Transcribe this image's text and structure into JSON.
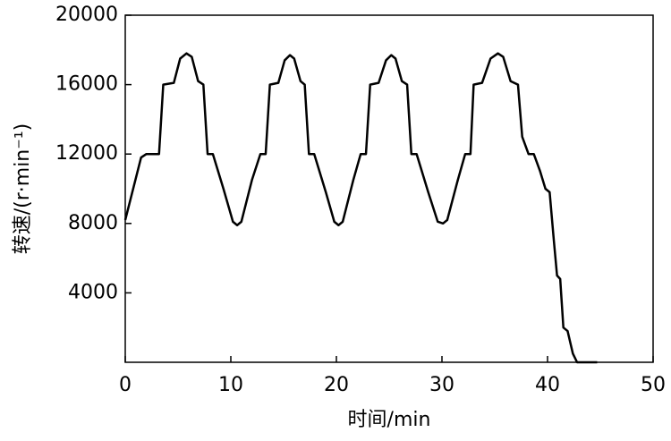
{
  "chart_data": {
    "type": "line",
    "xlabel": "时间/min",
    "ylabel": "转速/(r·min⁻¹)",
    "xlim": [
      0,
      50
    ],
    "xticks": [
      0,
      10,
      20,
      30,
      40,
      50
    ],
    "ylim": [
      0,
      20000
    ],
    "yticks": [
      4000,
      8000,
      12000,
      16000,
      20000
    ],
    "grid": false,
    "series": [
      {
        "color": "#000000",
        "x": [
          0,
          1.5,
          2.0,
          3.2,
          3.6,
          4.6,
          5.2,
          5.8,
          6.3,
          6.9,
          7.4,
          7.8,
          8.3,
          9.3,
          10.2,
          10.6,
          11.0,
          12.0,
          12.8,
          13.3,
          13.7,
          14.5,
          15.1,
          15.6,
          16.0,
          16.6,
          17.0,
          17.4,
          17.9,
          19.0,
          19.8,
          20.2,
          20.6,
          21.6,
          22.3,
          22.8,
          23.2,
          24.0,
          24.7,
          25.2,
          25.6,
          26.2,
          26.7,
          27.1,
          27.6,
          28.7,
          29.6,
          30.1,
          30.5,
          31.5,
          32.2,
          32.7,
          33.0,
          33.8,
          34.6,
          35.3,
          35.8,
          36.5,
          37.2,
          37.6,
          38.2,
          38.7,
          39.3,
          39.8,
          40.2,
          40.6,
          40.9,
          41.2,
          41.5,
          41.9,
          42.4,
          42.8,
          44.7
        ],
        "values": [
          8200,
          11800,
          12000,
          12000,
          16000,
          16100,
          17500,
          17800,
          17600,
          16200,
          16000,
          12000,
          12000,
          10000,
          8100,
          7900,
          8100,
          10500,
          12000,
          12000,
          16000,
          16100,
          17400,
          17700,
          17500,
          16200,
          16000,
          12000,
          12000,
          9800,
          8100,
          7900,
          8100,
          10500,
          12000,
          12000,
          16000,
          16100,
          17400,
          17700,
          17500,
          16200,
          16000,
          12000,
          12000,
          9800,
          8100,
          8000,
          8200,
          10500,
          12000,
          12000,
          16000,
          16100,
          17500,
          17800,
          17600,
          16200,
          16000,
          13000,
          12000,
          12000,
          11000,
          10000,
          9800,
          7000,
          5000,
          4800,
          2000,
          1800,
          500,
          0,
          0
        ]
      }
    ]
  }
}
